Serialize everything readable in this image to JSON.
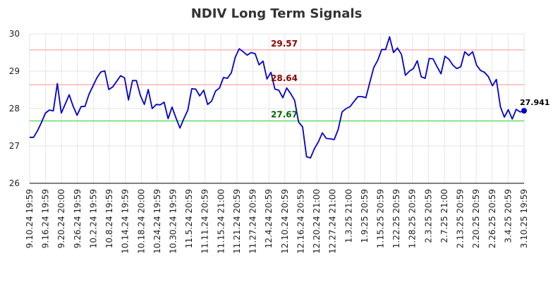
{
  "chart_data": {
    "type": "line",
    "title": "NDIV Long Term Signals",
    "xlabel": "",
    "ylabel": "",
    "ylim": [
      26,
      30
    ],
    "yticks": [
      "26",
      "27",
      "28",
      "29",
      "30"
    ],
    "grid": true,
    "legend": "none",
    "colors": {
      "line": "#0000cc",
      "upper": "#ffb3b3",
      "middle": "#ffb3b3",
      "lower": "#66dd66",
      "upper_label": "#8b0000",
      "middle_label": "#8b0000",
      "lower_label": "#006400",
      "grid": "#e6e6e6"
    },
    "x_tick_labels": [
      "9.10.24 19:59",
      "9.16.24 19:59",
      "9.20.24 20:00",
      "9.26.24 19:59",
      "10.2.24 19:59",
      "10.8.24 19:59",
      "10.14.24 19:59",
      "10.18.24 20:00",
      "10.24.24 19:59",
      "10.30.24 19:59",
      "11.5.24 20:59",
      "11.11.24 20:59",
      "11.15.24 21:00",
      "11.21.24 20:59",
      "11.27.24 20:59",
      "12.4.24 20:59",
      "12.10.24 20:59",
      "12.16.24 20:59",
      "12.20.24 21:00",
      "12.27.24 21:00",
      "1.3.25 21:00",
      "1.9.25 20:59",
      "1.15.25 20:59",
      "1.22.25 20:59",
      "1.28.25 20:59",
      "2.3.25 20:59",
      "2.7.25 21:00",
      "2.13.25 20:59",
      "2.20.25 20:59",
      "2.26.25 20:59",
      "3.4.25 20:59",
      "3.10.25 19:59"
    ],
    "levels": [
      {
        "value": 29.57,
        "label": "29.57",
        "style": "upper"
      },
      {
        "value": 28.64,
        "label": "28.64",
        "style": "middle"
      },
      {
        "value": 27.67,
        "label": "27.67",
        "style": "lower"
      }
    ],
    "series": [
      {
        "values": [
          27.23,
          27.23,
          27.41,
          27.63,
          27.88,
          27.96,
          27.94,
          28.67,
          27.88,
          28.12,
          28.37,
          28.06,
          27.82,
          28.05,
          28.06,
          28.38,
          28.6,
          28.82,
          28.98,
          29.01,
          28.51,
          28.58,
          28.73,
          28.88,
          28.82,
          28.23,
          28.75,
          28.75,
          28.35,
          28.11,
          28.51,
          28.0,
          28.11,
          28.1,
          28.17,
          27.73,
          28.04,
          27.75,
          27.48,
          27.73,
          27.96,
          28.53,
          28.52,
          28.34,
          28.49,
          28.11,
          28.2,
          28.47,
          28.55,
          28.83,
          28.81,
          28.96,
          29.38,
          29.6,
          29.52,
          29.43,
          29.5,
          29.47,
          29.17,
          29.27,
          28.79,
          28.97,
          28.52,
          28.49,
          28.29,
          28.55,
          28.4,
          28.22,
          27.64,
          27.51,
          26.71,
          26.68,
          26.93,
          27.11,
          27.35,
          27.2,
          27.19,
          27.17,
          27.44,
          27.91,
          28.0,
          28.05,
          28.19,
          28.32,
          28.32,
          28.29,
          28.7,
          29.1,
          29.29,
          29.58,
          29.58,
          29.92,
          29.5,
          29.62,
          29.45,
          28.89,
          29.0,
          29.07,
          29.28,
          28.85,
          28.81,
          29.34,
          29.33,
          29.12,
          28.93,
          29.4,
          29.32,
          29.16,
          29.07,
          29.12,
          29.52,
          29.42,
          29.52,
          29.16,
          29.02,
          28.97,
          28.85,
          28.61,
          28.78,
          28.05,
          27.77,
          27.97,
          27.72,
          27.98,
          27.91,
          27.941
        ],
        "last_label": "27.941"
      }
    ]
  }
}
